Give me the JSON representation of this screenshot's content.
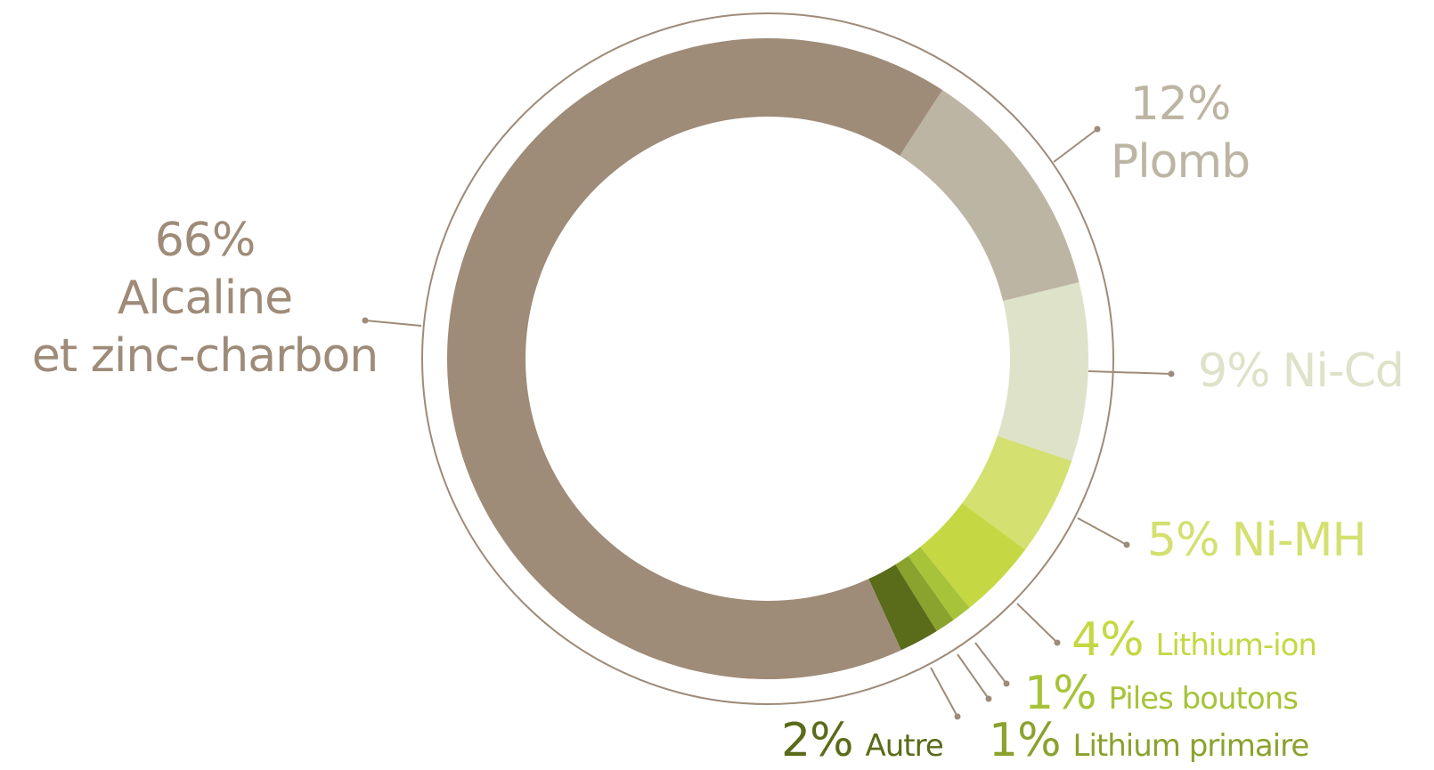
{
  "chart_data": {
    "type": "donut",
    "categories": [
      "Plomb",
      "Ni-Cd",
      "Ni-MH",
      "Lithium-ion",
      "Piles boutons",
      "Lithium primaire",
      "Autre",
      "Alcaline\net zinc-charbon"
    ],
    "values": [
      12,
      9,
      5,
      4,
      1,
      1,
      2,
      66
    ],
    "value_labels": [
      "12%",
      "9%",
      "5%",
      "4%",
      "1%",
      "1%",
      "2%",
      "66%"
    ],
    "colors": [
      "#bdb5a3",
      "#dde2c9",
      "#d4e06f",
      "#c5d843",
      "#a7c33a",
      "#8aa22e",
      "#5a6b1a",
      "#9e8b78"
    ]
  }
}
